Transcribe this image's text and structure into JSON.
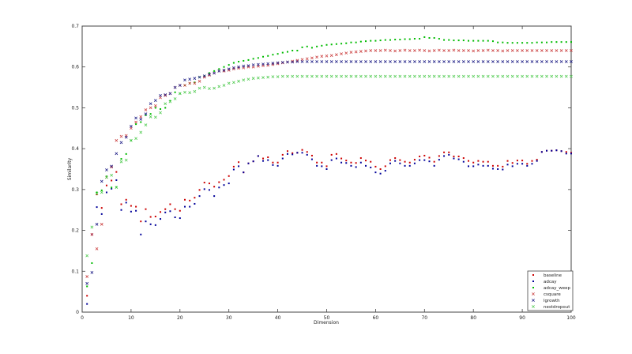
{
  "chart_data": {
    "type": "scatter",
    "title": "",
    "xlabel": "Dimension",
    "ylabel": "Similarity",
    "xlim": [
      0,
      100
    ],
    "ylim": [
      0,
      0.7
    ],
    "xticks": [
      "0",
      "10",
      "20",
      "30",
      "40",
      "50",
      "60",
      "70",
      "80",
      "90",
      "100"
    ],
    "yticks": [
      "0",
      "0.1",
      "0.2",
      "0.3",
      "0.4",
      "0.5",
      "0.6",
      "0.7"
    ],
    "grid": false,
    "legend_position": "bottom-right",
    "x": [
      1,
      2,
      3,
      4,
      5,
      6,
      7,
      8,
      9,
      10,
      11,
      12,
      13,
      14,
      15,
      16,
      17,
      18,
      19,
      20,
      21,
      22,
      23,
      24,
      25,
      26,
      27,
      28,
      29,
      30,
      31,
      32,
      33,
      34,
      35,
      36,
      37,
      38,
      39,
      40,
      41,
      42,
      43,
      44,
      45,
      46,
      47,
      48,
      49,
      50,
      51,
      52,
      53,
      54,
      55,
      56,
      57,
      58,
      59,
      60,
      61,
      62,
      63,
      64,
      65,
      66,
      67,
      68,
      69,
      70,
      71,
      72,
      73,
      74,
      75,
      76,
      77,
      78,
      79,
      80,
      81,
      82,
      83,
      84,
      85,
      86,
      87,
      88,
      89,
      90,
      91,
      92,
      93,
      94,
      95,
      96,
      97,
      98,
      99,
      100
    ],
    "series": [
      {
        "name": "baseline",
        "marker": "dot",
        "color": "#cc0000",
        "values": [
          0.04,
          0.19,
          0.288,
          0.255,
          0.31,
          0.322,
          0.343,
          0.264,
          0.275,
          0.26,
          0.258,
          0.222,
          0.252,
          0.233,
          0.234,
          0.245,
          0.252,
          0.264,
          0.252,
          0.248,
          0.275,
          0.273,
          0.28,
          0.299,
          0.317,
          0.315,
          0.307,
          0.318,
          0.324,
          0.333,
          0.356,
          0.367,
          0.342,
          0.364,
          0.369,
          0.382,
          0.376,
          0.379,
          0.366,
          0.366,
          0.385,
          0.394,
          0.389,
          0.39,
          0.397,
          0.392,
          0.383,
          0.366,
          0.366,
          0.357,
          0.385,
          0.387,
          0.376,
          0.371,
          0.366,
          0.365,
          0.377,
          0.371,
          0.368,
          0.356,
          0.35,
          0.357,
          0.372,
          0.377,
          0.372,
          0.368,
          0.366,
          0.373,
          0.381,
          0.383,
          0.378,
          0.368,
          0.382,
          0.391,
          0.391,
          0.381,
          0.381,
          0.377,
          0.37,
          0.366,
          0.37,
          0.368,
          0.368,
          0.358,
          0.358,
          0.356,
          0.37,
          0.365,
          0.371,
          0.371,
          0.363,
          0.37,
          0.373,
          0.392,
          0.395,
          0.395,
          0.396,
          0.394,
          0.392,
          0.39
        ]
      },
      {
        "name": "adcay",
        "marker": "dot",
        "color": "#000099",
        "values": [
          0.02,
          0.19,
          0.257,
          0.24,
          0.293,
          0.302,
          0.323,
          0.25,
          0.268,
          0.246,
          0.248,
          0.19,
          0.222,
          0.215,
          0.213,
          0.228,
          0.244,
          0.247,
          0.232,
          0.23,
          0.258,
          0.258,
          0.265,
          0.284,
          0.301,
          0.299,
          0.284,
          0.305,
          0.311,
          0.315,
          0.349,
          0.357,
          0.342,
          0.364,
          0.369,
          0.382,
          0.37,
          0.372,
          0.36,
          0.358,
          0.376,
          0.387,
          0.386,
          0.39,
          0.39,
          0.385,
          0.374,
          0.358,
          0.357,
          0.35,
          0.372,
          0.376,
          0.366,
          0.365,
          0.358,
          0.355,
          0.366,
          0.358,
          0.354,
          0.342,
          0.339,
          0.346,
          0.364,
          0.37,
          0.364,
          0.358,
          0.358,
          0.364,
          0.372,
          0.372,
          0.369,
          0.358,
          0.373,
          0.382,
          0.385,
          0.376,
          0.374,
          0.368,
          0.357,
          0.357,
          0.361,
          0.358,
          0.358,
          0.351,
          0.35,
          0.349,
          0.361,
          0.357,
          0.363,
          0.363,
          0.358,
          0.363,
          0.37,
          0.392,
          0.395,
          0.395,
          0.396,
          0.394,
          0.388,
          0.388
        ]
      },
      {
        "name": "adcay_weep",
        "marker": "dot",
        "color": "#00bb00",
        "values": [
          0.063,
          0.12,
          0.293,
          0.298,
          0.332,
          0.305,
          0.306,
          0.375,
          0.387,
          0.42,
          0.46,
          0.465,
          0.482,
          0.485,
          0.5,
          0.497,
          0.5,
          0.517,
          0.538,
          0.535,
          0.555,
          0.56,
          0.562,
          0.575,
          0.578,
          0.585,
          0.59,
          0.595,
          0.6,
          0.605,
          0.61,
          0.613,
          0.615,
          0.617,
          0.62,
          0.622,
          0.625,
          0.627,
          0.63,
          0.632,
          0.635,
          0.637,
          0.64,
          0.64,
          0.648,
          0.65,
          0.647,
          0.65,
          0.652,
          0.654,
          0.655,
          0.656,
          0.657,
          0.658,
          0.66,
          0.66,
          0.662,
          0.663,
          0.664,
          0.664,
          0.665,
          0.666,
          0.666,
          0.667,
          0.667,
          0.668,
          0.668,
          0.669,
          0.669,
          0.673,
          0.671,
          0.671,
          0.669,
          0.666,
          0.666,
          0.665,
          0.665,
          0.665,
          0.664,
          0.664,
          0.664,
          0.664,
          0.664,
          0.663,
          0.66,
          0.66,
          0.659,
          0.659,
          0.659,
          0.659,
          0.659,
          0.659,
          0.66,
          0.66,
          0.66,
          0.661,
          0.661,
          0.661,
          0.661,
          0.661
        ]
      },
      {
        "name": "csquare",
        "marker": "x",
        "color": "#cc4444",
        "values": [
          0.087,
          0.19,
          0.155,
          0.215,
          0.33,
          0.355,
          0.42,
          0.43,
          0.432,
          0.45,
          0.465,
          0.478,
          0.495,
          0.5,
          0.505,
          0.525,
          0.53,
          0.535,
          0.55,
          0.555,
          0.555,
          0.56,
          0.56,
          0.565,
          0.575,
          0.58,
          0.585,
          0.59,
          0.59,
          0.592,
          0.595,
          0.597,
          0.598,
          0.6,
          0.6,
          0.602,
          0.603,
          0.604,
          0.606,
          0.608,
          0.61,
          0.612,
          0.614,
          0.616,
          0.618,
          0.62,
          0.622,
          0.624,
          0.626,
          0.627,
          0.628,
          0.63,
          0.632,
          0.634,
          0.636,
          0.637,
          0.638,
          0.639,
          0.64,
          0.64,
          0.64,
          0.641,
          0.64,
          0.639,
          0.64,
          0.641,
          0.64,
          0.64,
          0.641,
          0.64,
          0.639,
          0.64,
          0.641,
          0.64,
          0.64,
          0.641,
          0.64,
          0.64,
          0.64,
          0.639,
          0.64,
          0.64,
          0.641,
          0.64,
          0.64,
          0.639,
          0.64,
          0.64,
          0.64,
          0.64,
          0.64,
          0.64,
          0.64,
          0.64,
          0.64,
          0.64,
          0.64,
          0.64,
          0.64,
          0.64
        ]
      },
      {
        "name": "lgrowth",
        "marker": "x",
        "color": "#222288",
        "values": [
          0.07,
          0.097,
          0.215,
          0.32,
          0.348,
          0.357,
          0.388,
          0.415,
          0.428,
          0.455,
          0.475,
          0.472,
          0.485,
          0.51,
          0.518,
          0.53,
          0.532,
          0.535,
          0.55,
          0.555,
          0.568,
          0.57,
          0.572,
          0.575,
          0.578,
          0.582,
          0.585,
          0.59,
          0.592,
          0.595,
          0.598,
          0.6,
          0.602,
          0.603,
          0.605,
          0.606,
          0.607,
          0.608,
          0.609,
          0.61,
          0.611,
          0.612,
          0.612,
          0.613,
          0.613,
          0.613,
          0.613,
          0.613,
          0.613,
          0.613,
          0.613,
          0.613,
          0.613,
          0.613,
          0.613,
          0.613,
          0.613,
          0.613,
          0.613,
          0.613,
          0.613,
          0.613,
          0.613,
          0.613,
          0.613,
          0.613,
          0.613,
          0.613,
          0.613,
          0.613,
          0.613,
          0.613,
          0.613,
          0.613,
          0.613,
          0.613,
          0.613,
          0.613,
          0.613,
          0.613,
          0.613,
          0.613,
          0.613,
          0.613,
          0.613,
          0.613,
          0.613,
          0.613,
          0.613,
          0.613,
          0.613,
          0.613,
          0.613,
          0.613,
          0.613,
          0.613,
          0.613,
          0.613,
          0.613,
          0.613
        ]
      },
      {
        "name": "nestdropout",
        "marker": "x",
        "color": "#55cc55",
        "values": [
          0.138,
          0.208,
          0.29,
          0.293,
          0.33,
          0.335,
          0.305,
          0.368,
          0.372,
          0.42,
          0.425,
          0.44,
          0.458,
          0.478,
          0.477,
          0.488,
          0.51,
          0.515,
          0.522,
          0.535,
          0.538,
          0.537,
          0.54,
          0.548,
          0.55,
          0.547,
          0.548,
          0.552,
          0.555,
          0.56,
          0.562,
          0.565,
          0.568,
          0.57,
          0.572,
          0.573,
          0.574,
          0.575,
          0.576,
          0.576,
          0.577,
          0.577,
          0.577,
          0.577,
          0.577,
          0.577,
          0.577,
          0.577,
          0.577,
          0.577,
          0.577,
          0.577,
          0.577,
          0.577,
          0.577,
          0.577,
          0.577,
          0.577,
          0.577,
          0.577,
          0.577,
          0.577,
          0.577,
          0.577,
          0.577,
          0.577,
          0.577,
          0.577,
          0.577,
          0.577,
          0.577,
          0.577,
          0.577,
          0.577,
          0.577,
          0.577,
          0.577,
          0.577,
          0.577,
          0.577,
          0.577,
          0.577,
          0.577,
          0.577,
          0.577,
          0.577,
          0.577,
          0.577,
          0.577,
          0.577,
          0.577,
          0.577,
          0.577,
          0.577,
          0.577,
          0.577,
          0.577,
          0.577,
          0.577,
          0.577
        ]
      }
    ]
  }
}
